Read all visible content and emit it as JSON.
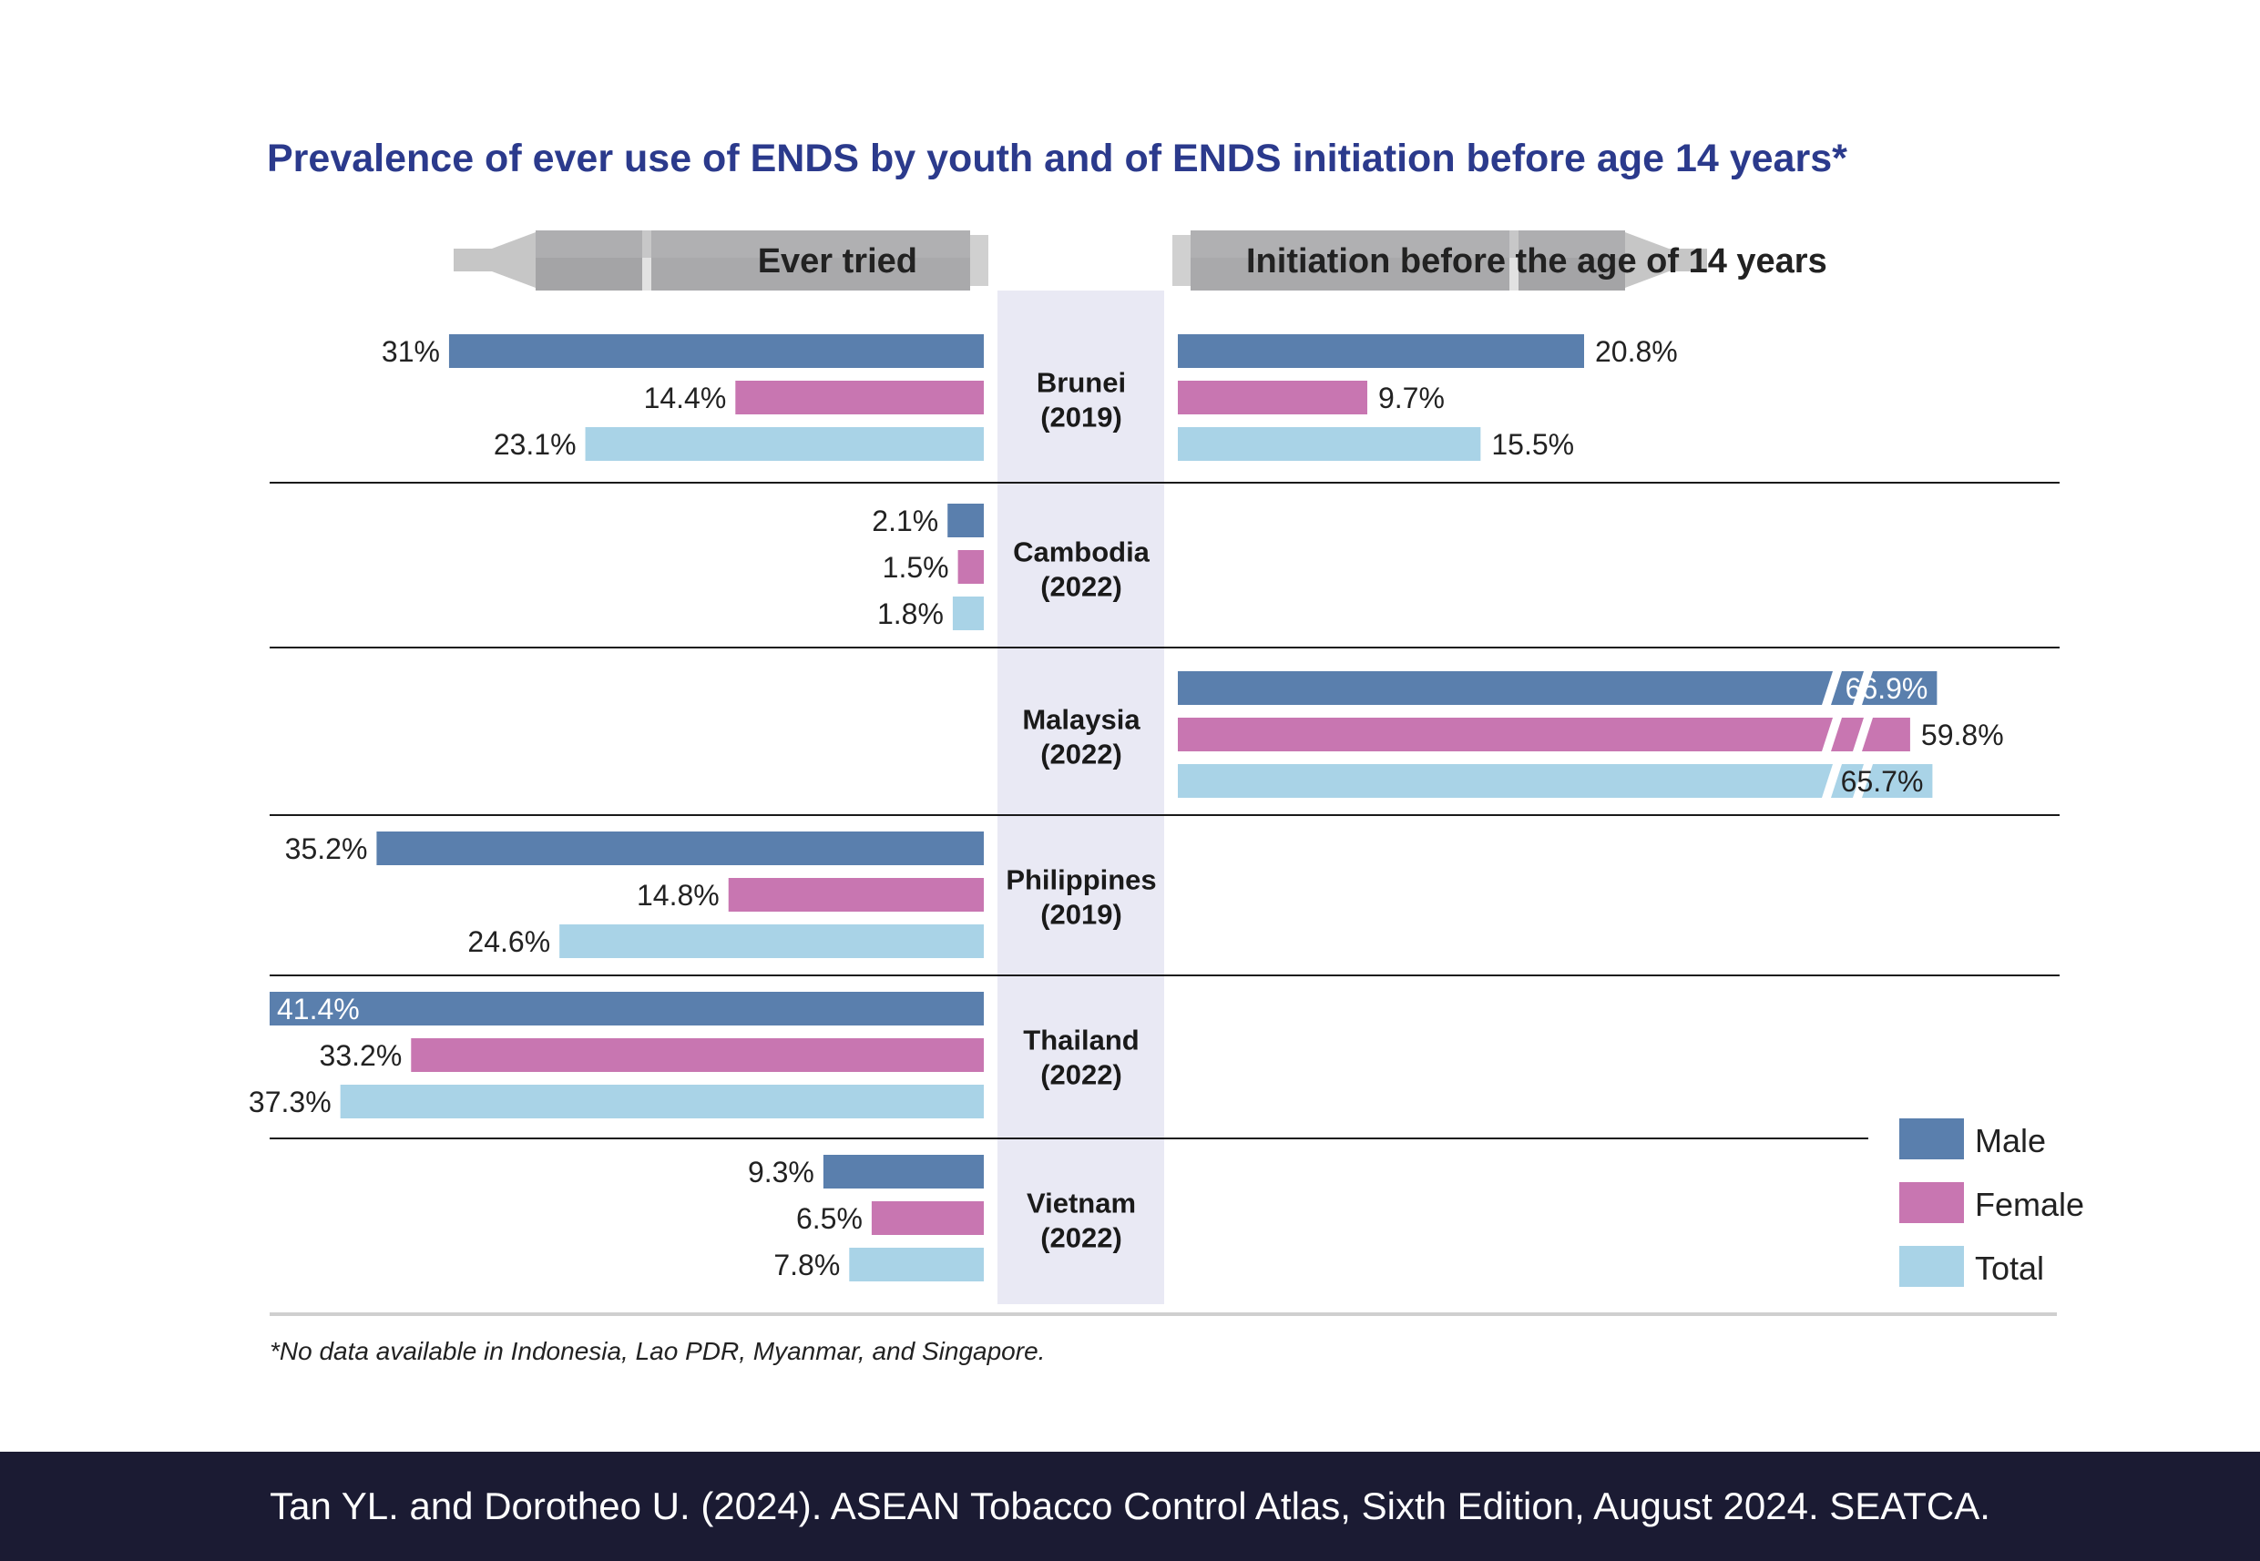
{
  "chart_data": {
    "type": "bar",
    "orientation": "horizontal-diverging",
    "title": "Prevalence of ever use of ENDS by youth and of ENDS initiation before age 14 years*",
    "left_panel": "Ever tried",
    "right_panel": "Initiation before the age of 14 years",
    "legend": [
      "Male",
      "Female",
      "Total"
    ],
    "colors": {
      "Male": "#5a7fad",
      "Female": "#c876b1",
      "Total": "#a9d3e7",
      "center_band": "#e9e9f4",
      "title": "#2b3a8c"
    },
    "ylim_left": [
      0,
      41.4
    ],
    "ylim_right": [
      0,
      20.8
    ],
    "countries": [
      {
        "name": "Brunei",
        "year": "(2019)",
        "ever_tried": [
          31,
          14.4,
          23.1
        ],
        "ever_tried_labels": [
          "31%",
          "14.4%",
          "23.1%"
        ],
        "initiation": [
          20.8,
          9.7,
          15.5
        ],
        "initiation_labels": [
          "20.8%",
          "9.7%",
          "15.5%"
        ]
      },
      {
        "name": "Cambodia",
        "year": "(2022)",
        "ever_tried": [
          2.1,
          1.5,
          1.8
        ],
        "ever_tried_labels": [
          "2.1%",
          "1.5%",
          "1.8%"
        ],
        "initiation": null,
        "initiation_labels": null
      },
      {
        "name": "Malaysia",
        "year": "(2022)",
        "ever_tried": null,
        "ever_tried_labels": null,
        "initiation": [
          66.9,
          59.8,
          65.7
        ],
        "initiation_labels": [
          "66.9%",
          "59.8%",
          "65.7%"
        ],
        "initiation_axis_break": true
      },
      {
        "name": "Philippines",
        "year": "(2019)",
        "ever_tried": [
          35.2,
          14.8,
          24.6
        ],
        "ever_tried_labels": [
          "35.2%",
          "14.8%",
          "24.6%"
        ],
        "initiation": null,
        "initiation_labels": null
      },
      {
        "name": "Thailand",
        "year": "(2022)",
        "ever_tried": [
          41.4,
          33.2,
          37.3
        ],
        "ever_tried_labels": [
          "41.4%",
          "33.2%",
          "37.3%"
        ],
        "initiation": null,
        "initiation_labels": null
      },
      {
        "name": "Vietnam",
        "year": "(2022)",
        "ever_tried": [
          9.3,
          6.5,
          7.8
        ],
        "ever_tried_labels": [
          "9.3%",
          "6.5%",
          "7.8%"
        ],
        "initiation": null,
        "initiation_labels": null
      }
    ],
    "footnote": "*No data available in Indonesia, Lao PDR, Myanmar, and Singapore."
  },
  "source": "Tan YL. and Dorotheo U. (2024). ASEAN Tobacco Control Atlas, Sixth Edition, August 2024. SEATCA."
}
